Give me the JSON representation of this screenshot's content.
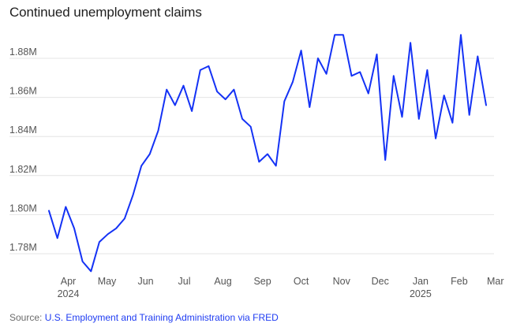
{
  "chart_data": {
    "type": "line",
    "title": "Continued unemployment claims",
    "xlabel": "",
    "ylabel": "",
    "ylim": [
      1.77,
      1.895
    ],
    "yticks": [
      {
        "value": 1.78,
        "label": "1.78M"
      },
      {
        "value": 1.8,
        "label": "1.80M"
      },
      {
        "value": 1.82,
        "label": "1.82M"
      },
      {
        "value": 1.84,
        "label": "1.84M"
      },
      {
        "value": 1.86,
        "label": "1.86M"
      },
      {
        "value": 1.88,
        "label": "1.88M"
      }
    ],
    "xticks": [
      {
        "index": 2.3,
        "label": "Apr",
        "sublabel": "2024"
      },
      {
        "index": 6.9,
        "label": "May",
        "sublabel": ""
      },
      {
        "index": 11.5,
        "label": "Jun",
        "sublabel": ""
      },
      {
        "index": 16.1,
        "label": "Jul",
        "sublabel": ""
      },
      {
        "index": 20.7,
        "label": "Aug",
        "sublabel": ""
      },
      {
        "index": 25.4,
        "label": "Sep",
        "sublabel": ""
      },
      {
        "index": 30.0,
        "label": "Oct",
        "sublabel": ""
      },
      {
        "index": 34.8,
        "label": "Nov",
        "sublabel": ""
      },
      {
        "index": 39.4,
        "label": "Dec",
        "sublabel": ""
      },
      {
        "index": 44.2,
        "label": "Jan",
        "sublabel": "2025"
      },
      {
        "index": 48.8,
        "label": "Feb",
        "sublabel": ""
      },
      {
        "index": 53.1,
        "label": "Mar",
        "sublabel": ""
      }
    ],
    "series": [
      {
        "color": "#1432f5",
        "values": [
          1.802,
          1.788,
          1.804,
          1.793,
          1.776,
          1.771,
          1.786,
          1.79,
          1.793,
          1.798,
          1.81,
          1.825,
          1.831,
          1.843,
          1.864,
          1.856,
          1.866,
          1.853,
          1.874,
          1.876,
          1.863,
          1.859,
          1.864,
          1.849,
          1.845,
          1.827,
          1.831,
          1.825,
          1.858,
          1.868,
          1.884,
          1.855,
          1.88,
          1.872,
          1.892,
          1.892,
          1.871,
          1.873,
          1.862,
          1.882,
          1.828,
          1.871,
          1.85,
          1.888,
          1.849,
          1.874,
          1.839,
          1.861,
          1.847,
          1.892,
          1.851,
          1.881,
          1.856
        ]
      }
    ],
    "grid": "horizontal",
    "legend": "none"
  },
  "source": {
    "prefix": "Source:",
    "text": "U.S. Employment and Training Administration via FRED"
  }
}
